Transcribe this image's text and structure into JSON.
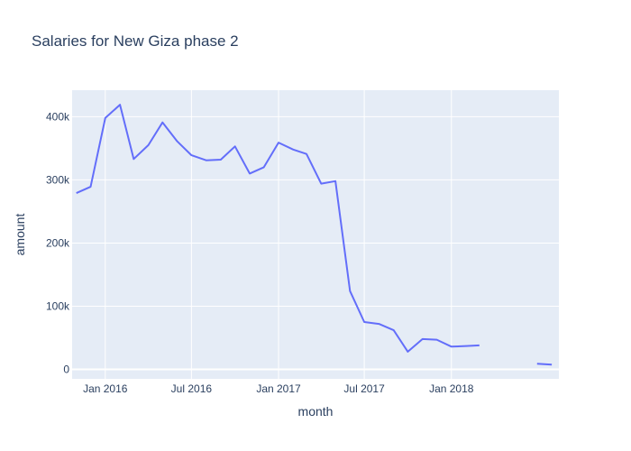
{
  "chart_data": {
    "type": "line",
    "title": "Salaries for New Giza phase 2",
    "xlabel": "month",
    "ylabel": "amount",
    "x_tick_labels": [
      "Jan 2016",
      "Jul 2016",
      "Jan 2017",
      "Jul 2017",
      "Jan 2018"
    ],
    "y_tick_labels": [
      "0",
      "100k",
      "200k",
      "300k",
      "400k"
    ],
    "ylim": [
      -15000,
      442000
    ],
    "grid": true,
    "colors": {
      "plot_bg": "#e5ecf6",
      "line": "#636efa",
      "grid": "#ffffff",
      "text": "#2a3f5f"
    },
    "series": [
      {
        "segments": [
          [
            [
              "2015-11",
              279000
            ],
            [
              "2015-12",
              289000
            ],
            [
              "2016-01",
              398000
            ],
            [
              "2016-02",
              419000
            ],
            [
              "2016-03",
              333000
            ],
            [
              "2016-04",
              355000
            ],
            [
              "2016-05",
              391000
            ],
            [
              "2016-06",
              361000
            ],
            [
              "2016-07",
              339000
            ],
            [
              "2016-08",
              331000
            ],
            [
              "2016-09",
              332000
            ],
            [
              "2016-10",
              353000
            ],
            [
              "2016-11",
              310000
            ],
            [
              "2016-12",
              320000
            ],
            [
              "2017-01",
              359000
            ],
            [
              "2017-02",
              348000
            ],
            [
              "2017-03",
              341000
            ],
            [
              "2017-04",
              294000
            ],
            [
              "2017-05",
              298000
            ],
            [
              "2017-06",
              124000
            ],
            [
              "2017-07",
              75000
            ],
            [
              "2017-08",
              72000
            ],
            [
              "2017-09",
              62000
            ],
            [
              "2017-10",
              28000
            ],
            [
              "2017-11",
              48000
            ],
            [
              "2017-12",
              47000
            ],
            [
              "2018-01",
              36000
            ],
            [
              "2018-02",
              37000
            ],
            [
              "2018-03",
              38000
            ]
          ],
          [
            [
              "2018-07",
              9000
            ],
            [
              "2018-08",
              7500
            ]
          ]
        ]
      }
    ]
  }
}
